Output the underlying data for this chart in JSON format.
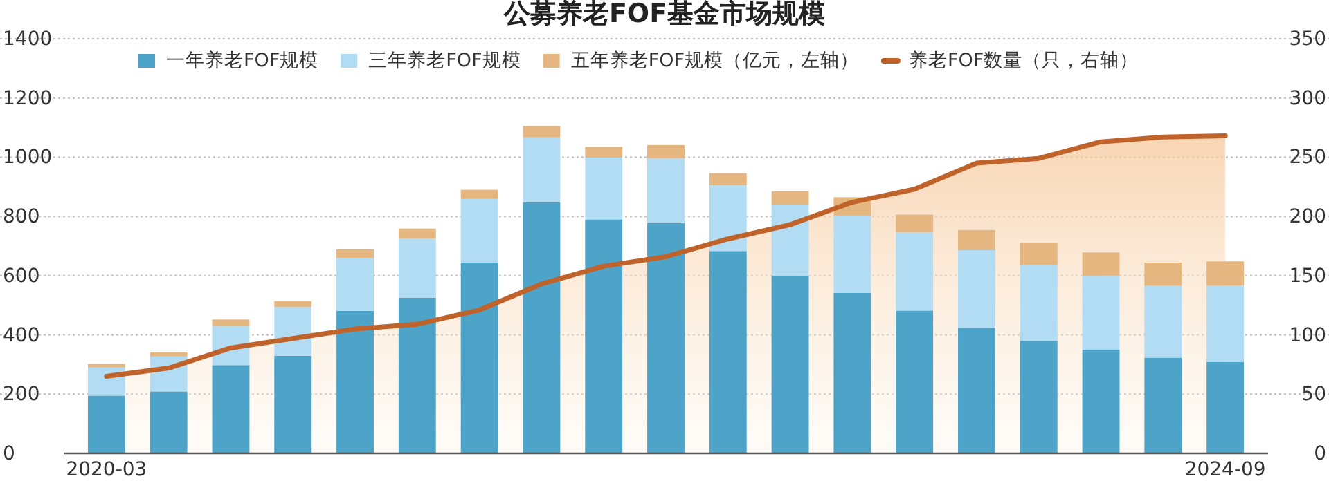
{
  "chart_data": {
    "type": "bar",
    "title": "公募养老FOF基金市场规模",
    "categories": [
      "2020-03",
      null,
      null,
      null,
      null,
      null,
      null,
      null,
      null,
      null,
      null,
      null,
      null,
      null,
      null,
      null,
      null,
      null,
      "2024-09"
    ],
    "stacked": true,
    "series": [
      {
        "name": "一年养老FOF规模",
        "color": "#4ea3c9",
        "values": [
          195,
          209,
          298,
          329,
          481,
          525,
          645,
          848,
          790,
          778,
          683,
          600,
          542,
          482,
          424,
          380,
          351,
          323,
          309
        ]
      },
      {
        "name": "三年养老FOF规模",
        "color": "#b2dcf3",
        "values": [
          95,
          118,
          131,
          165,
          178,
          201,
          214,
          219,
          209,
          219,
          222,
          240,
          261,
          264,
          262,
          256,
          249,
          243,
          257
        ]
      },
      {
        "name": "五年养老FOF规模（亿元，左轴）",
        "color": "#e5b67f",
        "values": [
          12,
          16,
          23,
          20,
          30,
          33,
          31,
          38,
          36,
          44,
          41,
          45,
          62,
          60,
          68,
          75,
          78,
          78,
          82
        ]
      },
      {
        "name": "养老FOF数量（只，右轴）",
        "type": "area",
        "axis": "y2",
        "color": "#c0632a",
        "values": [
          65,
          72,
          89,
          97,
          105,
          109,
          121,
          143,
          158,
          166,
          181,
          193,
          212,
          223,
          245,
          249,
          263,
          267,
          268
        ]
      }
    ],
    "ylim": [
      0,
      1400
    ],
    "yticks": [
      0,
      200,
      400,
      600,
      800,
      1000,
      1200,
      1400
    ],
    "y2lim": [
      0,
      350
    ],
    "y2ticks": [
      0,
      50,
      100,
      150,
      200,
      250,
      300,
      350
    ],
    "grid": "y",
    "legend": "top"
  }
}
